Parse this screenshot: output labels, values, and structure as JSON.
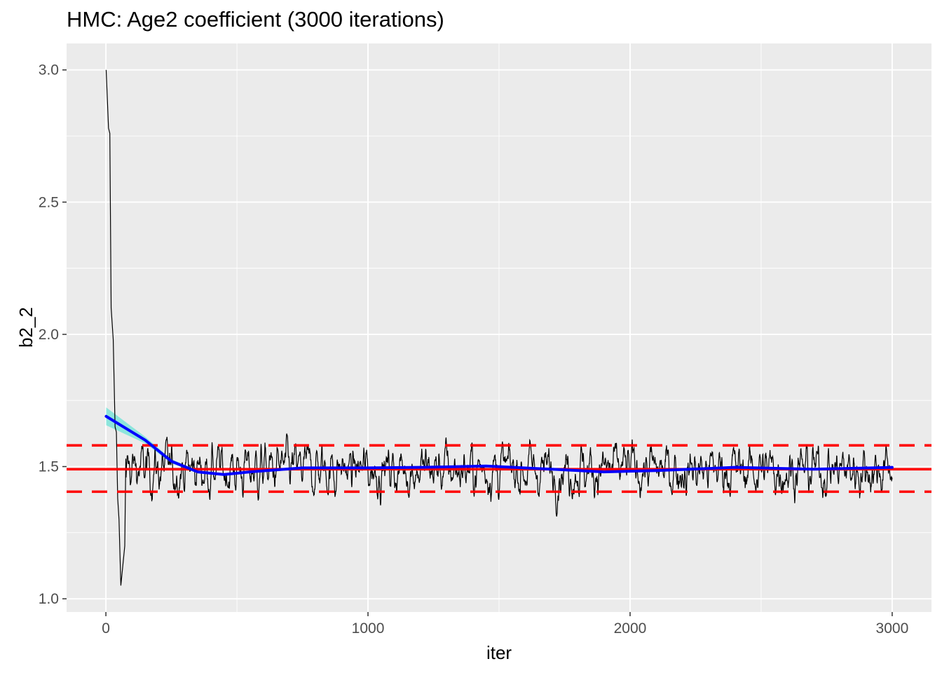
{
  "chart_data": {
    "type": "line",
    "title": "HMC: Age2 coefficient (3000 iterations)",
    "xlabel": "iter",
    "ylabel": "b2_2",
    "xlim": [
      -150,
      3150
    ],
    "ylim": [
      0.95,
      3.1
    ],
    "x_ticks": [
      0,
      1000,
      2000,
      3000
    ],
    "y_ticks": [
      1.0,
      1.5,
      2.0,
      2.5,
      3.0
    ],
    "y_tick_labels": [
      "1.0",
      "1.5",
      "2.0",
      "2.5",
      "3.0"
    ],
    "grid": true,
    "legend": "none",
    "n_iter": 3000,
    "trace_series": {
      "name": "b2_2",
      "color": "#000000",
      "burnin_points": [
        [
          1,
          3.0
        ],
        [
          10,
          2.78
        ],
        [
          15,
          2.76
        ],
        [
          20,
          2.1
        ],
        [
          28,
          1.98
        ],
        [
          35,
          1.65
        ],
        [
          40,
          1.63
        ],
        [
          45,
          1.38
        ],
        [
          50,
          1.3
        ],
        [
          57,
          1.05
        ],
        [
          62,
          1.1
        ],
        [
          68,
          1.16
        ],
        [
          72,
          1.2
        ],
        [
          76,
          1.53
        ]
      ],
      "stationary_center": 1.49,
      "stationary_spread": 0.055,
      "max_value": 1.74,
      "min_value": 1.29
    },
    "smooth_series": {
      "name": "smooth",
      "color": "#0000ff",
      "ribbon_color": "#40e0d0",
      "points": [
        [
          1,
          1.69
        ],
        [
          150,
          1.6
        ],
        [
          250,
          1.52
        ],
        [
          350,
          1.48
        ],
        [
          450,
          1.47
        ],
        [
          550,
          1.48
        ],
        [
          750,
          1.495
        ],
        [
          1000,
          1.495
        ],
        [
          1200,
          1.497
        ],
        [
          1450,
          1.502
        ],
        [
          1700,
          1.49
        ],
        [
          1900,
          1.48
        ],
        [
          2100,
          1.485
        ],
        [
          2400,
          1.497
        ],
        [
          2700,
          1.49
        ],
        [
          3000,
          1.497
        ]
      ]
    },
    "reference_lines": [
      {
        "name": "mean",
        "y": 1.49,
        "color": "#ff0000",
        "style": "solid"
      },
      {
        "name": "upper",
        "y": 1.58,
        "color": "#ff0000",
        "style": "dashed"
      },
      {
        "name": "lower",
        "y": 1.405,
        "color": "#ff0000",
        "style": "dashed"
      }
    ]
  }
}
